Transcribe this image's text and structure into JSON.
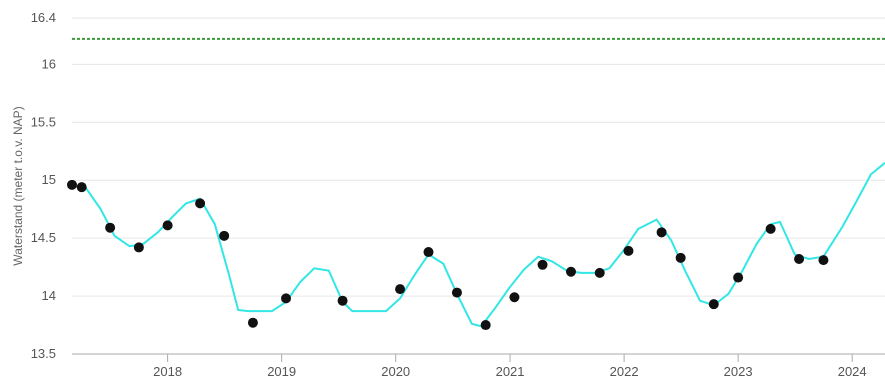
{
  "chart_data": {
    "type": "line",
    "title": "",
    "xlabel": "",
    "ylabel": "Waterstand (meter t.o.v. NAP)",
    "ylim": [
      13.5,
      16.4
    ],
    "xlim": [
      "2017-03-01",
      "2024-04-15"
    ],
    "grid": true,
    "y_ticks": [
      "13.5",
      "14",
      "14.5",
      "15",
      "15.5",
      "16",
      "16.4"
    ],
    "x_ticks": [
      "2018",
      "2019",
      "2020",
      "2021",
      "2022",
      "2023",
      "2024"
    ],
    "colors": {
      "line": "#33e6e6",
      "points": "#111111",
      "reference": "#3a9a3a"
    },
    "reference_level": 16.22,
    "series": [
      {
        "type": "line",
        "x": [
          "2017-03-01",
          "2017-04-15",
          "2017-06-01",
          "2017-07-15",
          "2017-09-01",
          "2017-10-15",
          "2017-12-01",
          "2018-01-15",
          "2018-03-01",
          "2018-04-15",
          "2018-06-01",
          "2018-07-15",
          "2018-08-15",
          "2018-09-15",
          "2018-10-15",
          "2018-12-01",
          "2019-01-15",
          "2019-03-01",
          "2019-04-15",
          "2019-06-01",
          "2019-07-15",
          "2019-08-15",
          "2019-10-01",
          "2019-12-01",
          "2020-01-15",
          "2020-03-01",
          "2020-04-15",
          "2020-06-01",
          "2020-07-15",
          "2020-09-01",
          "2020-10-01",
          "2020-11-15",
          "2021-01-01",
          "2021-02-15",
          "2021-04-01",
          "2021-05-15",
          "2021-07-01",
          "2021-08-15",
          "2021-10-01",
          "2021-11-15",
          "2022-01-01",
          "2022-02-15",
          "2022-04-15",
          "2022-06-01",
          "2022-07-15",
          "2022-09-01",
          "2022-10-15",
          "2022-12-01",
          "2023-01-15",
          "2023-03-01",
          "2023-04-15",
          "2023-05-15",
          "2023-07-01",
          "2023-08-15",
          "2023-10-01",
          "2023-12-01",
          "2024-01-15",
          "2024-03-01",
          "2024-04-15"
        ],
        "y": [
          14.96,
          14.93,
          14.75,
          14.52,
          14.43,
          14.45,
          14.55,
          14.68,
          14.8,
          14.84,
          14.62,
          14.2,
          13.88,
          13.87,
          13.87,
          13.87,
          13.95,
          14.12,
          14.24,
          14.22,
          13.95,
          13.87,
          13.87,
          13.87,
          13.98,
          14.18,
          14.36,
          14.28,
          14.02,
          13.76,
          13.74,
          13.9,
          14.08,
          14.23,
          14.34,
          14.3,
          14.22,
          14.2,
          14.2,
          14.24,
          14.4,
          14.58,
          14.66,
          14.48,
          14.22,
          13.96,
          13.92,
          14.02,
          14.22,
          14.45,
          14.62,
          14.64,
          14.36,
          14.32,
          14.34,
          14.6,
          14.82,
          15.05,
          15.15
        ]
      },
      {
        "type": "scatter",
        "x": [
          "2017-03-01",
          "2017-04-01",
          "2017-07-01",
          "2017-10-01",
          "2018-01-01",
          "2018-04-15",
          "2018-07-01",
          "2018-10-01",
          "2019-01-15",
          "2019-07-15",
          "2020-01-15",
          "2020-04-15",
          "2020-07-15",
          "2020-10-15",
          "2021-01-15",
          "2021-04-15",
          "2021-07-15",
          "2021-10-15",
          "2022-01-15",
          "2022-05-01",
          "2022-07-01",
          "2022-10-15",
          "2023-01-01",
          "2023-04-15",
          "2023-07-15",
          "2023-10-01"
        ],
        "y": [
          14.96,
          14.94,
          14.59,
          14.42,
          14.61,
          14.8,
          14.52,
          13.77,
          13.98,
          13.96,
          14.06,
          14.38,
          14.03,
          13.75,
          13.99,
          14.27,
          14.21,
          14.2,
          14.39,
          14.55,
          14.33,
          13.93,
          14.16,
          14.58,
          14.32,
          14.31
        ]
      }
    ]
  }
}
